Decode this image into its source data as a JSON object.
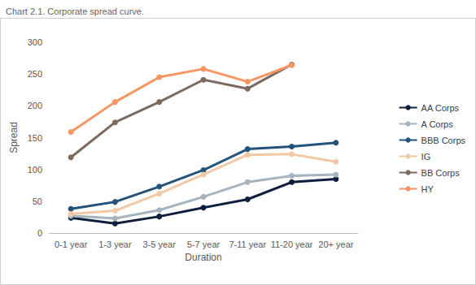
{
  "chart_data": {
    "type": "line",
    "title": "Chart 2.1. Corporate spread curve.",
    "x_label": "Duration",
    "y_label": "Spread",
    "categories": [
      "0-1 year",
      "1-3 year",
      "3-5 year",
      "5-7 year",
      "7-11 year",
      "11-20 year",
      "20+ year"
    ],
    "series": [
      {
        "name": "AA Corps",
        "color": "#0d1f3c",
        "values": [
          24,
          15,
          26,
          40,
          53,
          80,
          85
        ]
      },
      {
        "name": "A Corps",
        "color": "#a5b4bf",
        "values": [
          27,
          23,
          36,
          57,
          80,
          90,
          92
        ]
      },
      {
        "name": "BBB Corps",
        "color": "#24537a",
        "values": [
          38,
          49,
          73,
          99,
          132,
          136,
          142
        ]
      },
      {
        "name": "IG",
        "color": "#f2c9a6",
        "values": [
          30,
          35,
          62,
          92,
          123,
          124,
          112
        ]
      },
      {
        "name": "BB Corps",
        "color": "#7d6a5f",
        "values": [
          119,
          174,
          206,
          241,
          227,
          265,
          null
        ]
      },
      {
        "name": "HY",
        "color": "#f79663",
        "values": [
          159,
          206,
          245,
          258,
          238,
          264,
          null
        ]
      }
    ],
    "ylim": [
      0,
      300
    ],
    "yticks": [
      0,
      50,
      100,
      150,
      200,
      250,
      300
    ],
    "grid": false,
    "legend": "right",
    "marker": "circle"
  }
}
